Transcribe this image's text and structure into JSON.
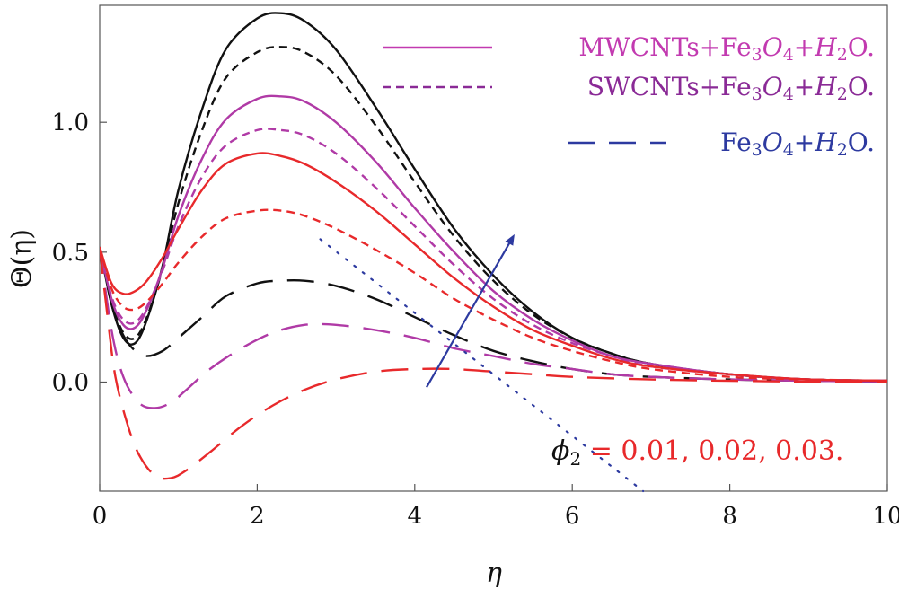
{
  "chart_data": {
    "type": "line",
    "title": "",
    "xlabel": "η",
    "ylabel": "Θ(η)",
    "xlim": [
      0,
      10
    ],
    "ylim": [
      -0.42,
      1.45
    ],
    "xticks": [
      "0",
      "2",
      "4",
      "6",
      "8",
      "10"
    ],
    "yticks": [
      "0.0",
      "0.5",
      "1.0"
    ],
    "colors": {
      "black": "#111111",
      "magenta": "#b03aa6",
      "red": "#e8292b",
      "blue": "#2d3aa0"
    },
    "legend": [
      {
        "name": "MWCNTs+Fe3O4+H2O.",
        "dash": "solid",
        "color": "#c23ab0",
        "rich": [
          [
            "MWCNTs+Fe",
            false,
            false
          ],
          [
            "3",
            true,
            false
          ],
          [
            "O",
            false,
            true
          ],
          [
            "4",
            true,
            false
          ],
          [
            "+",
            false,
            false
          ],
          [
            "H",
            false,
            true
          ],
          [
            "2",
            true,
            false
          ],
          [
            "O.",
            false,
            false
          ]
        ]
      },
      {
        "name": "SWCNTs+Fe3O4+H2O.",
        "dash": "short",
        "color": "#8a2a96",
        "rich": [
          [
            "SWCNTs+Fe",
            false,
            false
          ],
          [
            "3",
            true,
            false
          ],
          [
            "O",
            false,
            true
          ],
          [
            "4",
            true,
            false
          ],
          [
            "+",
            false,
            false
          ],
          [
            "H",
            false,
            true
          ],
          [
            "2",
            true,
            false
          ],
          [
            "O.",
            false,
            false
          ]
        ]
      },
      {
        "name": "Fe3O4+H2O.",
        "dash": "long",
        "color": "#2d3aa0",
        "rich": [
          [
            "Fe",
            false,
            false
          ],
          [
            "3",
            true,
            false
          ],
          [
            "O",
            false,
            true
          ],
          [
            "4",
            true,
            false
          ],
          [
            "+",
            false,
            false
          ],
          [
            "H",
            false,
            true
          ],
          [
            "2",
            true,
            false
          ],
          [
            "O.",
            false,
            false
          ]
        ]
      }
    ],
    "annotation": {
      "symbol": "ϕ",
      "subscript": "2",
      "text": " = 0.01, 0.02, 0.03."
    },
    "series": [
      {
        "name": "MWCNTs+Fe3O4+H2O., ϕ2 = 0.03",
        "color": "#111111",
        "dash": "solid",
        "x": [
          0,
          0.15,
          0.3,
          0.45,
          0.6,
          0.8,
          1.0,
          1.3,
          1.6,
          2.0,
          2.3,
          2.6,
          3.0,
          3.5,
          4.0,
          4.5,
          5.0,
          5.5,
          6.0,
          6.5,
          7.0,
          8.0,
          9.0,
          10.0
        ],
        "y": [
          0.52,
          0.3,
          0.17,
          0.15,
          0.24,
          0.45,
          0.74,
          1.05,
          1.28,
          1.4,
          1.42,
          1.39,
          1.28,
          1.06,
          0.82,
          0.59,
          0.41,
          0.27,
          0.17,
          0.11,
          0.07,
          0.03,
          0.01,
          0.005
        ]
      },
      {
        "name": "SWCNTs+Fe3O4+H2O., ϕ2 = 0.03",
        "color": "#111111",
        "dash": "short",
        "x": [
          0,
          0.15,
          0.3,
          0.45,
          0.6,
          0.8,
          1.0,
          1.3,
          1.6,
          2.0,
          2.3,
          2.6,
          3.0,
          3.5,
          4.0,
          4.5,
          5.0,
          5.5,
          6.0,
          6.5,
          7.0,
          8.0,
          9.0,
          10.0
        ],
        "y": [
          0.52,
          0.31,
          0.19,
          0.17,
          0.25,
          0.44,
          0.69,
          0.97,
          1.17,
          1.27,
          1.29,
          1.27,
          1.18,
          0.99,
          0.77,
          0.56,
          0.39,
          0.26,
          0.17,
          0.11,
          0.07,
          0.03,
          0.01,
          0.005
        ]
      },
      {
        "name": "Fe3O4+H2O., ϕ2 = 0.03",
        "color": "#111111",
        "dash": "long",
        "x": [
          0,
          0.15,
          0.3,
          0.45,
          0.6,
          0.8,
          1.0,
          1.3,
          1.6,
          2.0,
          2.3,
          2.6,
          3.0,
          3.5,
          4.0,
          4.5,
          5.0,
          5.5,
          6.0,
          6.5,
          7.0,
          8.0,
          9.0,
          10.0
        ],
        "y": [
          0.52,
          0.3,
          0.18,
          0.12,
          0.1,
          0.12,
          0.17,
          0.25,
          0.33,
          0.38,
          0.39,
          0.39,
          0.37,
          0.32,
          0.25,
          0.18,
          0.12,
          0.08,
          0.05,
          0.03,
          0.02,
          0.01,
          0.005,
          0.002
        ]
      },
      {
        "name": "MWCNTs+Fe3O4+H2O., ϕ2 = 0.02",
        "color": "#b03aa6",
        "dash": "solid",
        "x": [
          0,
          0.15,
          0.3,
          0.45,
          0.6,
          0.8,
          1.0,
          1.3,
          1.6,
          2.0,
          2.3,
          2.6,
          3.0,
          3.5,
          4.0,
          4.5,
          5.0,
          5.5,
          6.0,
          6.5,
          7.0,
          8.0,
          9.0,
          10.0
        ],
        "y": [
          0.52,
          0.32,
          0.22,
          0.21,
          0.28,
          0.44,
          0.64,
          0.86,
          1.01,
          1.09,
          1.1,
          1.08,
          1.0,
          0.85,
          0.67,
          0.5,
          0.35,
          0.24,
          0.16,
          0.1,
          0.07,
          0.03,
          0.01,
          0.005
        ]
      },
      {
        "name": "SWCNTs+Fe3O4+H2O., ϕ2 = 0.02",
        "color": "#b03aa6",
        "dash": "short",
        "x": [
          0,
          0.15,
          0.3,
          0.45,
          0.6,
          0.8,
          1.0,
          1.3,
          1.6,
          2.0,
          2.3,
          2.6,
          3.0,
          3.5,
          4.0,
          4.5,
          5.0,
          5.5,
          6.0,
          6.5,
          7.0,
          8.0,
          9.0,
          10.0
        ],
        "y": [
          0.52,
          0.33,
          0.24,
          0.23,
          0.29,
          0.43,
          0.6,
          0.79,
          0.91,
          0.97,
          0.97,
          0.95,
          0.88,
          0.75,
          0.6,
          0.45,
          0.32,
          0.22,
          0.15,
          0.1,
          0.06,
          0.03,
          0.01,
          0.005
        ]
      },
      {
        "name": "Fe3O4+H2O., ϕ2 = 0.02",
        "color": "#b03aa6",
        "dash": "long",
        "x": [
          0,
          0.15,
          0.3,
          0.5,
          0.7,
          0.9,
          1.1,
          1.4,
          1.8,
          2.2,
          2.6,
          3.0,
          3.5,
          4.0,
          4.5,
          5.0,
          5.5,
          6.0,
          6.5,
          7.0,
          8.0,
          9.0,
          10.0
        ],
        "y": [
          0.52,
          0.2,
          0.02,
          -0.08,
          -0.1,
          -0.08,
          -0.03,
          0.05,
          0.13,
          0.19,
          0.22,
          0.22,
          0.2,
          0.17,
          0.13,
          0.1,
          0.07,
          0.05,
          0.03,
          0.02,
          0.01,
          0.005,
          0.002
        ]
      },
      {
        "name": "MWCNTs+Fe3O4+H2O., ϕ2 = 0.01",
        "color": "#e8292b",
        "dash": "solid",
        "x": [
          0,
          0.15,
          0.3,
          0.45,
          0.6,
          0.8,
          1.0,
          1.3,
          1.6,
          2.0,
          2.3,
          2.6,
          3.0,
          3.5,
          4.0,
          4.5,
          5.0,
          5.5,
          6.0,
          6.5,
          7.0,
          8.0,
          9.0,
          10.0
        ],
        "y": [
          0.52,
          0.38,
          0.34,
          0.35,
          0.39,
          0.48,
          0.59,
          0.74,
          0.84,
          0.88,
          0.87,
          0.84,
          0.77,
          0.66,
          0.53,
          0.4,
          0.29,
          0.2,
          0.14,
          0.09,
          0.06,
          0.03,
          0.01,
          0.005
        ]
      },
      {
        "name": "SWCNTs+Fe3O4+H2O., ϕ2 = 0.01",
        "color": "#e8292b",
        "dash": "short",
        "x": [
          0,
          0.15,
          0.3,
          0.45,
          0.6,
          0.8,
          1.0,
          1.3,
          1.6,
          2.0,
          2.3,
          2.6,
          3.0,
          3.5,
          4.0,
          4.5,
          5.0,
          5.5,
          6.0,
          6.5,
          7.0,
          8.0,
          9.0,
          10.0
        ],
        "y": [
          0.52,
          0.36,
          0.29,
          0.28,
          0.31,
          0.38,
          0.46,
          0.56,
          0.63,
          0.66,
          0.66,
          0.64,
          0.59,
          0.51,
          0.42,
          0.32,
          0.24,
          0.17,
          0.12,
          0.08,
          0.05,
          0.02,
          0.01,
          0.005
        ]
      },
      {
        "name": "Fe3O4+H2O., ϕ2 = 0.01",
        "color": "#e8292b",
        "dash": "long",
        "x": [
          0,
          0.1,
          0.2,
          0.35,
          0.5,
          0.7,
          0.9,
          1.1,
          1.4,
          1.8,
          2.2,
          2.6,
          3.0,
          3.5,
          4.0,
          4.5,
          5.0,
          5.5,
          6.0,
          7.0,
          8.0,
          9.0,
          10.0
        ],
        "y": [
          0.52,
          0.25,
          0.02,
          -0.16,
          -0.28,
          -0.36,
          -0.37,
          -0.34,
          -0.27,
          -0.17,
          -0.09,
          -0.03,
          0.01,
          0.04,
          0.05,
          0.05,
          0.04,
          0.03,
          0.02,
          0.01,
          0.005,
          0.002,
          0.001
        ]
      }
    ],
    "arrow": {
      "from": [
        4.15,
        -0.02
      ],
      "to": [
        5.25,
        0.56
      ],
      "color": "#2d3aa0"
    },
    "guide_line": {
      "x": [
        2.8,
        6.9
      ],
      "y": [
        0.55,
        -0.42
      ],
      "color": "#2d3aa0"
    }
  }
}
